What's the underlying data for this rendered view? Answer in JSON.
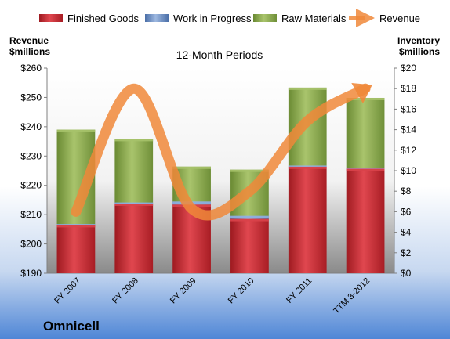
{
  "chart_data": {
    "type": "bar",
    "subtitle": "12-Month Periods",
    "company": "Omnicell",
    "left_axis": {
      "label_line1": "Revenue",
      "label_line2": "$millions",
      "min": 190,
      "max": 260,
      "step": 10,
      "tick_labels": [
        "$190",
        "$200",
        "$210",
        "$220",
        "$230",
        "$240",
        "$250",
        "$260"
      ]
    },
    "right_axis": {
      "label_line1": "Inventory",
      "label_line2": "$millions",
      "min": 0,
      "max": 20,
      "step": 2,
      "tick_labels": [
        "$0",
        "$2",
        "$4",
        "$6",
        "$8",
        "$10",
        "$12",
        "$14",
        "$16",
        "$18",
        "$20"
      ]
    },
    "categories": [
      "FY 2007",
      "FY 2008",
      "FY 2009",
      "FY 2010",
      "FY 2011",
      "TTM 3-2012"
    ],
    "series": [
      {
        "name": "Finished Goods",
        "axis": "right",
        "stacked": true,
        "color": "#c0262e",
        "values": [
          4.7,
          6.8,
          6.7,
          5.3,
          10.4,
          10.2
        ]
      },
      {
        "name": "Work in Progress",
        "axis": "right",
        "stacked": true,
        "color": "#6f93c8",
        "values": [
          0.1,
          0.1,
          0.3,
          0.3,
          0.1,
          0.1
        ]
      },
      {
        "name": "Raw Materials",
        "axis": "right",
        "stacked": true,
        "color": "#8eac4f",
        "values": [
          9.2,
          6.2,
          3.4,
          4.5,
          7.6,
          6.8
        ]
      },
      {
        "name": "Revenue",
        "axis": "left",
        "type": "line",
        "color": "#f0883a",
        "values": [
          211,
          253,
          212,
          218,
          242,
          253
        ]
      }
    ],
    "legend_position": "top",
    "grid": false
  }
}
